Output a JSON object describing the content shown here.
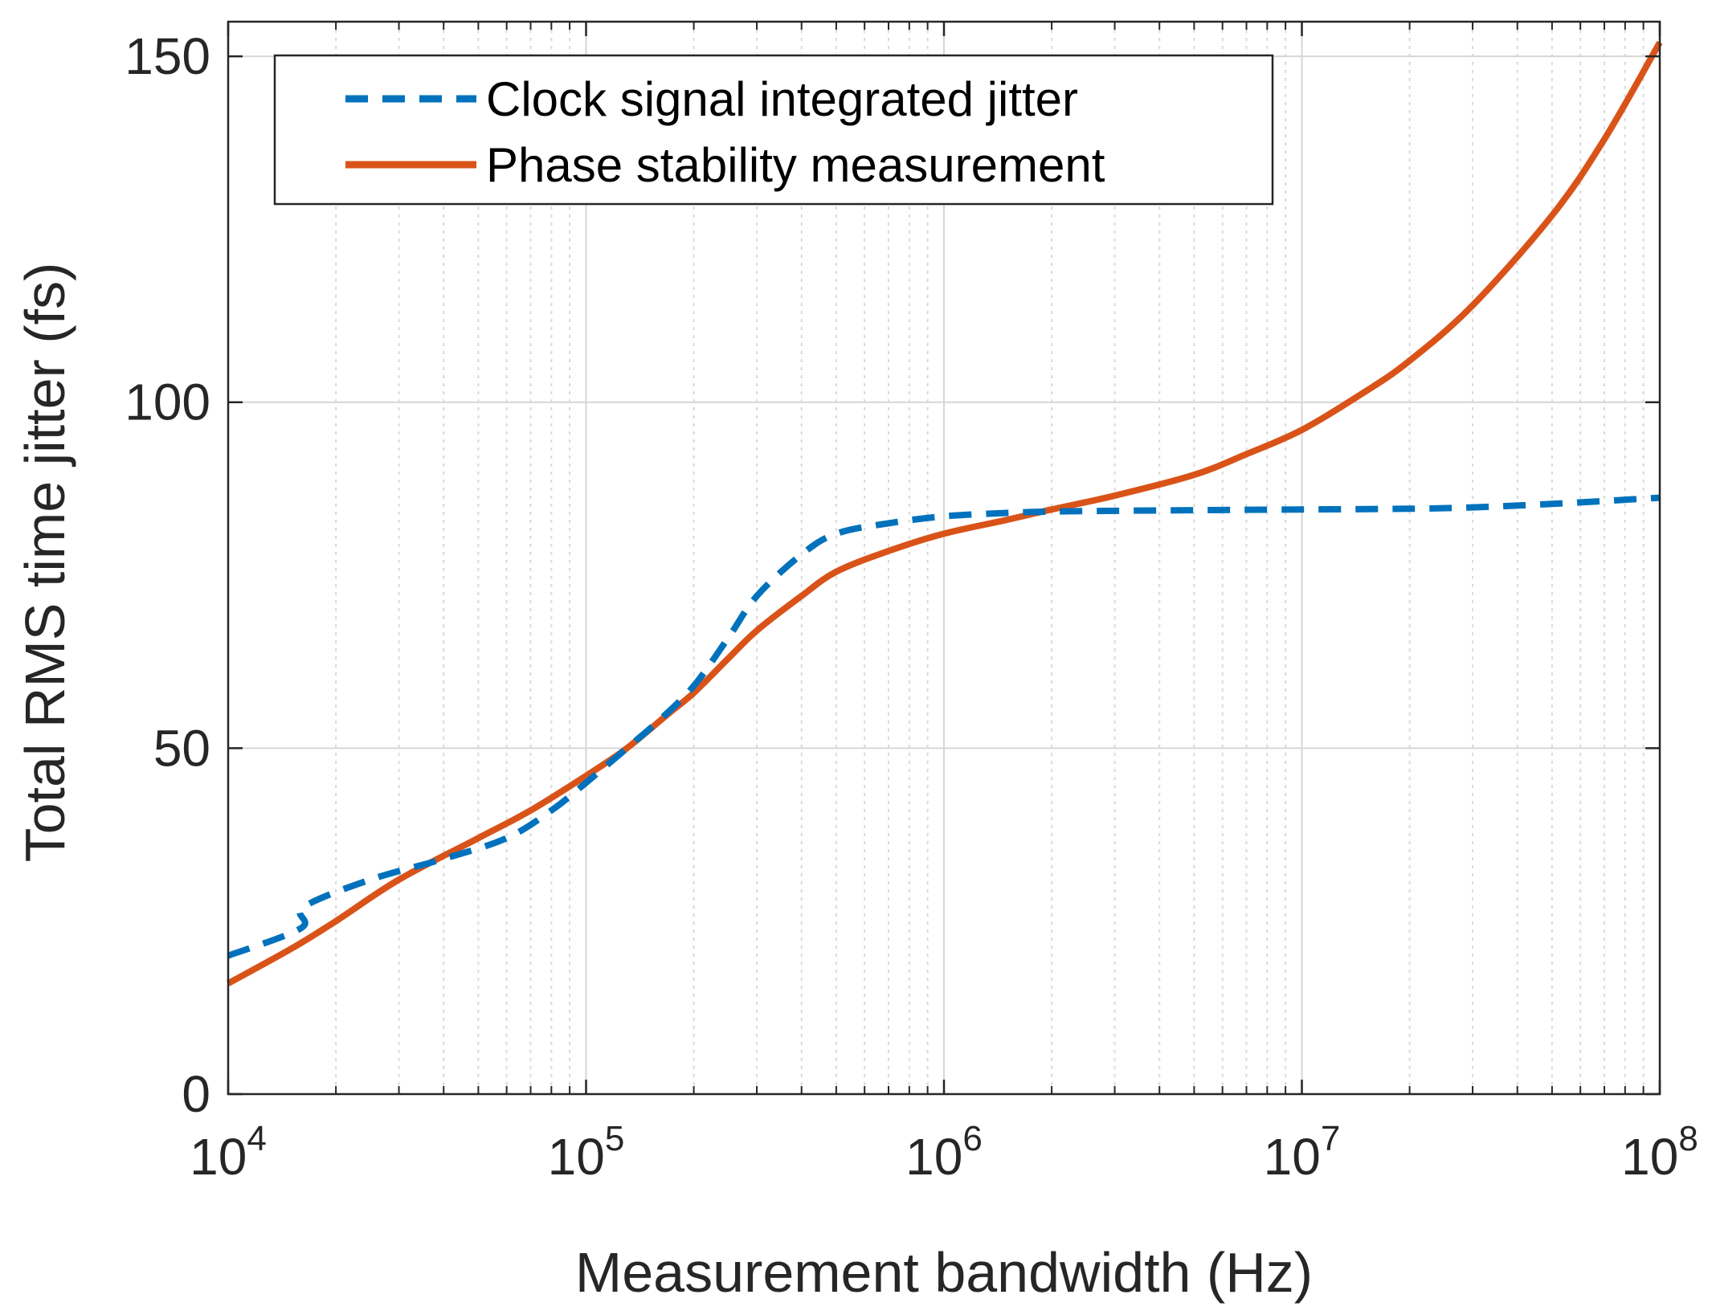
{
  "chart_data": {
    "type": "line",
    "xscale": "log",
    "xlabel": "Measurement bandwidth (Hz)",
    "ylabel": "Total RMS time jitter (fs)",
    "xlim": [
      10000,
      100000000
    ],
    "ylim": [
      0,
      155
    ],
    "grid": true,
    "minor_grid_x": true,
    "legend_position": "top-left",
    "x_ticks": [
      {
        "base": "10",
        "exp": "4",
        "value": 10000
      },
      {
        "base": "10",
        "exp": "5",
        "value": 100000
      },
      {
        "base": "10",
        "exp": "6",
        "value": 1000000
      },
      {
        "base": "10",
        "exp": "7",
        "value": 10000000
      },
      {
        "base": "10",
        "exp": "8",
        "value": 100000000
      }
    ],
    "y_ticks": [
      {
        "label": "0",
        "value": 0
      },
      {
        "label": "50",
        "value": 50
      },
      {
        "label": "100",
        "value": 100
      },
      {
        "label": "150",
        "value": 150
      }
    ],
    "series": [
      {
        "name": "Clock signal integrated jitter",
        "color": "#0072BD",
        "style": "dashed",
        "x": [
          10000,
          16000,
          16200,
          25000,
          40000,
          60000,
          80000,
          100000,
          130000,
          160000,
          200000,
          250000,
          300000,
          400000,
          500000,
          700000,
          1000000,
          1500000,
          2000000,
          3000000,
          5000000,
          10000000,
          20000000,
          30000000,
          50000000,
          100000000
        ],
        "y": [
          20,
          24,
          27,
          31,
          34,
          37,
          41,
          45,
          50,
          54,
          59,
          66,
          72,
          78,
          81,
          82.5,
          83.5,
          84,
          84.2,
          84.3,
          84.4,
          84.5,
          84.6,
          84.8,
          85.3,
          86.2
        ]
      },
      {
        "name": "Phase stability measurement",
        "color": "#D95319",
        "style": "solid",
        "x": [
          10000,
          15000,
          20000,
          30000,
          50000,
          70000,
          100000,
          130000,
          170000,
          200000,
          250000,
          300000,
          400000,
          500000,
          700000,
          1000000,
          1500000,
          2000000,
          3000000,
          5000000,
          7000000,
          10000000,
          15000000,
          20000000,
          30000000,
          50000000,
          70000000,
          100000000
        ],
        "y": [
          16,
          21,
          25,
          31,
          37,
          41,
          46,
          50,
          55,
          58,
          63,
          67,
          72,
          75.5,
          78.5,
          81,
          83,
          84.5,
          86.5,
          89.5,
          92.5,
          96,
          101.5,
          106,
          114,
          127,
          138,
          152
        ]
      }
    ]
  }
}
